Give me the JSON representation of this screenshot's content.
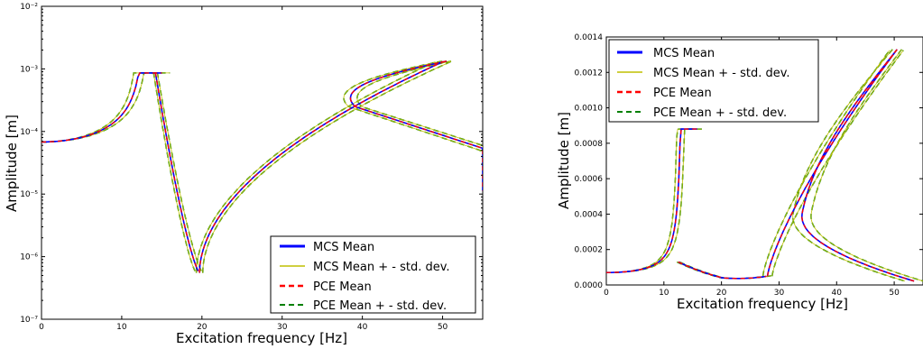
{
  "chart_data": [
    {
      "type": "line",
      "xlabel": "Excitation frequency [Hz]",
      "ylabel": "Amplitude [m]",
      "xlim": [
        0,
        55
      ],
      "ylim": [
        1e-07,
        0.01
      ],
      "yscale": "log",
      "x_ticks": [
        "0",
        "10",
        "20",
        "30",
        "40",
        "50"
      ],
      "y_ticks": [
        "10⁻⁷",
        "10⁻⁶",
        "10⁻⁵",
        "10⁻⁴",
        "10⁻³",
        "10⁻²"
      ],
      "legend_position": "lower-right",
      "grid": false,
      "series": [
        {
          "name": "MCS Mean",
          "color": "#0000ff",
          "style": "solid"
        },
        {
          "name": "MCS  Mean + - std. dev.",
          "color": "#bfbf00",
          "style": "solid"
        },
        {
          "name": "PCE Mean",
          "color": "#ff0000",
          "style": "dashed"
        },
        {
          "name": "PCE Mean + - std. dev.",
          "color": "#008000",
          "style": "dashed"
        }
      ]
    },
    {
      "type": "line",
      "xlabel": "Excitation frequency [Hz]",
      "ylabel": "Amplitude [m]",
      "xlim": [
        0,
        55
      ],
      "ylim": [
        0,
        0.0014
      ],
      "yscale": "linear",
      "x_ticks": [
        "0",
        "10",
        "20",
        "30",
        "40",
        "50"
      ],
      "y_ticks": [
        "0.0000",
        "0.0002",
        "0.0004",
        "0.0006",
        "0.0008",
        "0.0010",
        "0.0012",
        "0.0014"
      ],
      "legend_position": "upper-left",
      "grid": false,
      "series": [
        {
          "name": "MCS Mean",
          "color": "#0000ff",
          "style": "solid"
        },
        {
          "name": "MCS  Mean + - std. dev.",
          "color": "#bfbf00",
          "style": "solid"
        },
        {
          "name": "PCE Mean",
          "color": "#ff0000",
          "style": "dashed"
        },
        {
          "name": "PCE Mean + - std. dev.",
          "color": "#008000",
          "style": "dashed"
        }
      ]
    }
  ]
}
